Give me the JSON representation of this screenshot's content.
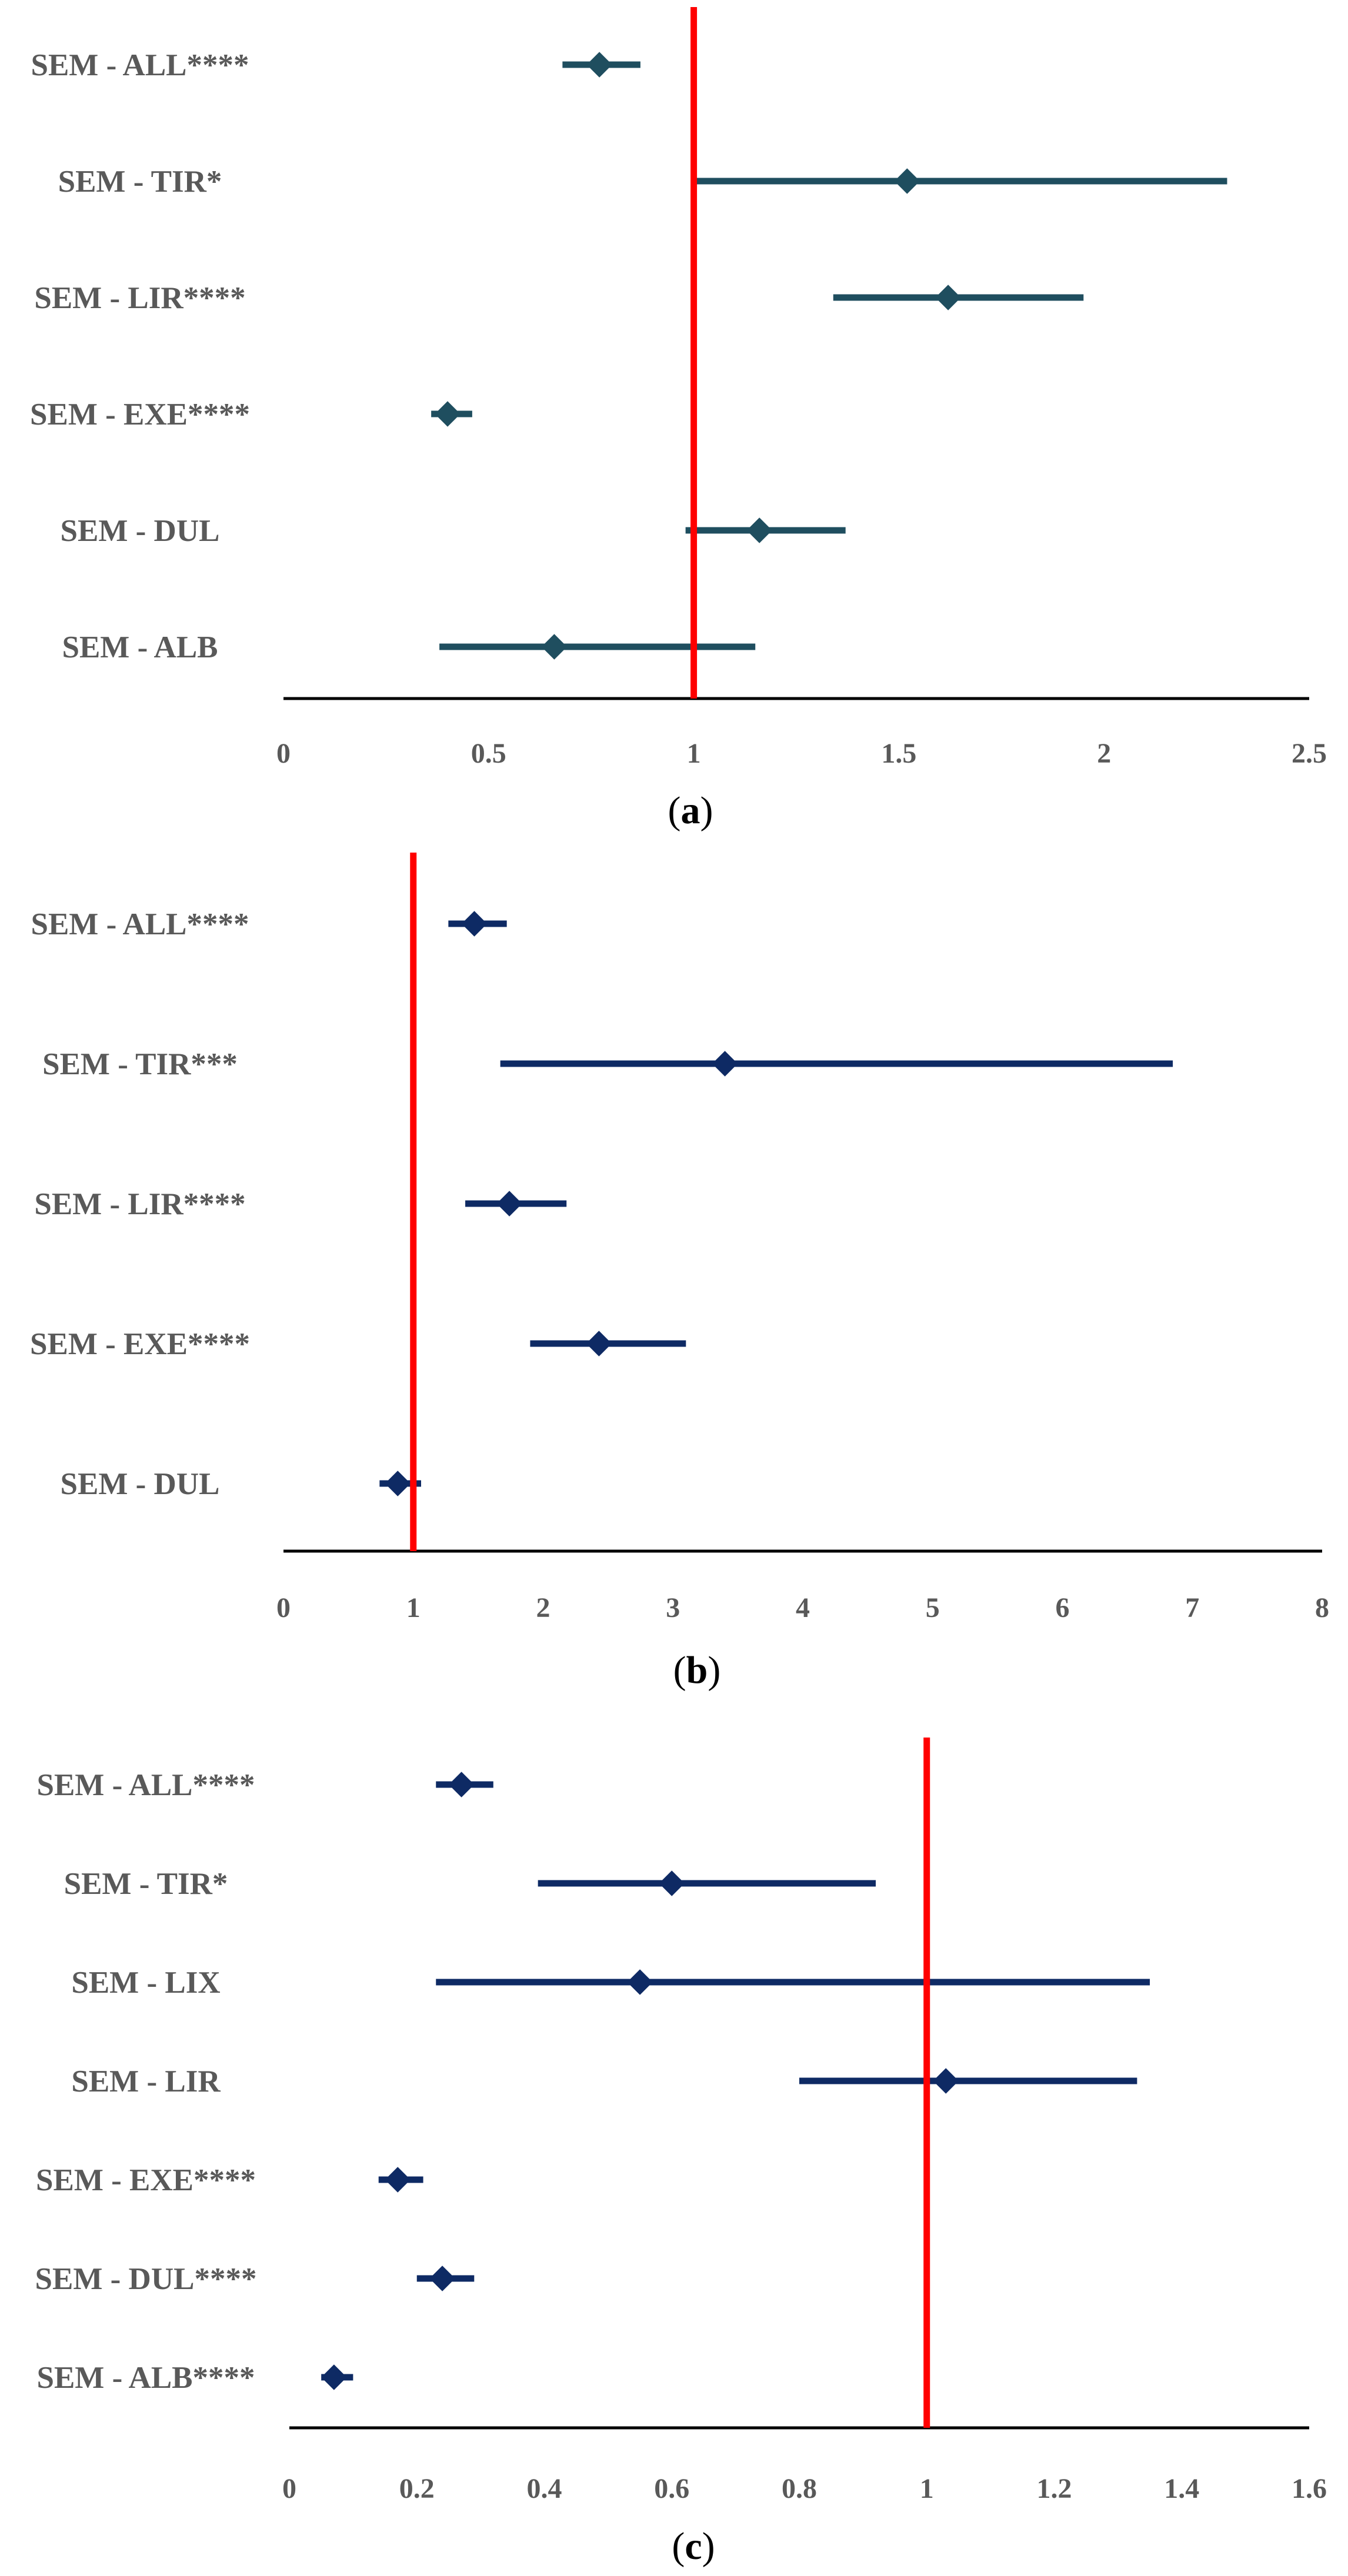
{
  "chart_data": [
    {
      "type": "scatter",
      "subtype": "forest",
      "panel": "a",
      "caption": {
        "open": "(",
        "letter": "a",
        "close": ")"
      },
      "xlim": [
        0,
        2.5
      ],
      "ticks": [
        0,
        0.5,
        1,
        1.5,
        2,
        2.5
      ],
      "tick_labels": [
        "0",
        "0.5",
        "1",
        "1.5",
        "2",
        "2.5"
      ],
      "reference_line": 1,
      "colors": {
        "series": "#1f4e5f",
        "reference": "#ff0000",
        "axis": "#000000"
      },
      "rows": [
        {
          "label": "SEM - ALL****",
          "estimate": 0.77,
          "ci": [
            0.68,
            0.87
          ]
        },
        {
          "label": "SEM - TIR*",
          "estimate": 1.52,
          "ci": [
            1.0,
            2.3
          ]
        },
        {
          "label": "SEM - LIR****",
          "estimate": 1.62,
          "ci": [
            1.34,
            1.95
          ]
        },
        {
          "label": "SEM - EXE****",
          "estimate": 0.4,
          "ci": [
            0.36,
            0.46
          ]
        },
        {
          "label": "SEM - DUL",
          "estimate": 1.16,
          "ci": [
            0.98,
            1.37
          ]
        },
        {
          "label": "SEM - ALB",
          "estimate": 0.66,
          "ci": [
            0.38,
            1.15
          ]
        }
      ]
    },
    {
      "type": "scatter",
      "subtype": "forest",
      "panel": "b",
      "caption": {
        "open": "(",
        "letter": "b",
        "close": ")"
      },
      "xlim": [
        0,
        8
      ],
      "ticks": [
        0,
        1,
        2,
        3,
        4,
        5,
        6,
        7,
        8
      ],
      "tick_labels": [
        "0",
        "1",
        "2",
        "3",
        "4",
        "5",
        "6",
        "7",
        "8"
      ],
      "reference_line": 1,
      "colors": {
        "series": "#0e2a64",
        "reference": "#ff0000",
        "axis": "#000000"
      },
      "rows": [
        {
          "label": "SEM - ALL****",
          "estimate": 1.47,
          "ci": [
            1.27,
            1.72
          ]
        },
        {
          "label": "SEM - TIR***",
          "estimate": 3.4,
          "ci": [
            1.67,
            6.85
          ]
        },
        {
          "label": "SEM - LIR****",
          "estimate": 1.74,
          "ci": [
            1.4,
            2.18
          ]
        },
        {
          "label": "SEM - EXE****",
          "estimate": 2.43,
          "ci": [
            1.9,
            3.1
          ]
        },
        {
          "label": "SEM - DUL",
          "estimate": 0.88,
          "ci": [
            0.74,
            1.06
          ]
        }
      ]
    },
    {
      "type": "scatter",
      "subtype": "forest",
      "panel": "c",
      "caption": {
        "open": "(",
        "letter": "c",
        "close": ")"
      },
      "xlim": [
        0,
        1.6
      ],
      "ticks": [
        0,
        0.2,
        0.4,
        0.6,
        0.8,
        1,
        1.2,
        1.4,
        1.6
      ],
      "tick_labels": [
        "0",
        "0.2",
        "0.4",
        "0.6",
        "0.8",
        "1",
        "1.2",
        "1.4",
        "1.6"
      ],
      "reference_line": 1,
      "colors": {
        "series": "#0e2a64",
        "reference": "#ff0000",
        "axis": "#000000"
      },
      "rows": [
        {
          "label": "SEM - ALL****",
          "estimate": 0.27,
          "ci": [
            0.23,
            0.32
          ]
        },
        {
          "label": "SEM - TIR*",
          "estimate": 0.6,
          "ci": [
            0.39,
            0.92
          ]
        },
        {
          "label": "SEM - LIX",
          "estimate": 0.55,
          "ci": [
            0.23,
            1.35
          ]
        },
        {
          "label": "SEM - LIR",
          "estimate": 1.03,
          "ci": [
            0.8,
            1.33
          ]
        },
        {
          "label": "SEM - EXE****",
          "estimate": 0.17,
          "ci": [
            0.14,
            0.21
          ]
        },
        {
          "label": "SEM - DUL****",
          "estimate": 0.24,
          "ci": [
            0.2,
            0.29
          ]
        },
        {
          "label": "SEM - ALB****",
          "estimate": 0.07,
          "ci": [
            0.05,
            0.1
          ]
        }
      ]
    }
  ]
}
